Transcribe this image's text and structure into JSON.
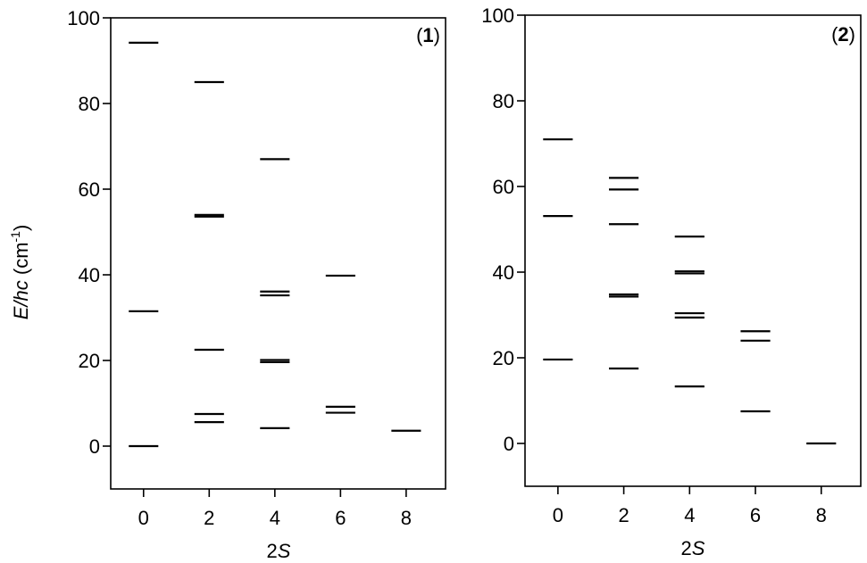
{
  "chart_data": [
    {
      "type": "scatter",
      "mark": "horizontal energy levels",
      "panel_label": {
        "open": "(",
        "bold": "1",
        "close": ")"
      },
      "ylabel": {
        "italic": "E/hc",
        "text": " (cm",
        "sup": "-1",
        "close": ")"
      },
      "xlabel": {
        "plain": "2",
        "italic": "S"
      },
      "xticks": [
        0,
        2,
        4,
        6,
        8
      ],
      "yticks": [
        0,
        20,
        40,
        60,
        80,
        100
      ],
      "xlim": [
        -1,
        9.2
      ],
      "ylim": [
        -10,
        100
      ],
      "levels": [
        {
          "x": 0,
          "y": 94.2
        },
        {
          "x": 0,
          "y": 31.5
        },
        {
          "x": 0,
          "y": 0
        },
        {
          "x": 2,
          "y": 85.0
        },
        {
          "x": 2,
          "y": 54.0
        },
        {
          "x": 2,
          "y": 53.6
        },
        {
          "x": 2,
          "y": 22.5
        },
        {
          "x": 2,
          "y": 7.5
        },
        {
          "x": 2,
          "y": 5.6
        },
        {
          "x": 4,
          "y": 67.0
        },
        {
          "x": 4,
          "y": 36.1
        },
        {
          "x": 4,
          "y": 35.2
        },
        {
          "x": 4,
          "y": 20.1
        },
        {
          "x": 4,
          "y": 19.6
        },
        {
          "x": 4,
          "y": 4.2
        },
        {
          "x": 6,
          "y": 39.8
        },
        {
          "x": 6,
          "y": 9.2
        },
        {
          "x": 6,
          "y": 7.8
        },
        {
          "x": 8,
          "y": 3.6
        }
      ]
    },
    {
      "type": "scatter",
      "mark": "horizontal energy levels",
      "panel_label": {
        "open": "(",
        "bold": "2",
        "close": ")"
      },
      "xlabel": {
        "plain": "2",
        "italic": "S"
      },
      "xticks": [
        0,
        2,
        4,
        6,
        8
      ],
      "yticks": [
        0,
        20,
        40,
        60,
        80,
        100
      ],
      "xlim": [
        -1,
        9.2
      ],
      "ylim": [
        -10,
        100
      ],
      "levels": [
        {
          "x": 0,
          "y": 71.0
        },
        {
          "x": 0,
          "y": 53.1
        },
        {
          "x": 0,
          "y": 19.6
        },
        {
          "x": 2,
          "y": 62.0
        },
        {
          "x": 2,
          "y": 59.3
        },
        {
          "x": 2,
          "y": 51.2
        },
        {
          "x": 2,
          "y": 34.8
        },
        {
          "x": 2,
          "y": 34.3
        },
        {
          "x": 2,
          "y": 17.5
        },
        {
          "x": 4,
          "y": 48.3
        },
        {
          "x": 4,
          "y": 40.2
        },
        {
          "x": 4,
          "y": 39.7
        },
        {
          "x": 4,
          "y": 30.4
        },
        {
          "x": 4,
          "y": 29.4
        },
        {
          "x": 4,
          "y": 13.3
        },
        {
          "x": 6,
          "y": 26.2
        },
        {
          "x": 6,
          "y": 24.0
        },
        {
          "x": 6,
          "y": 7.5
        },
        {
          "x": 8,
          "y": 0
        }
      ]
    }
  ]
}
